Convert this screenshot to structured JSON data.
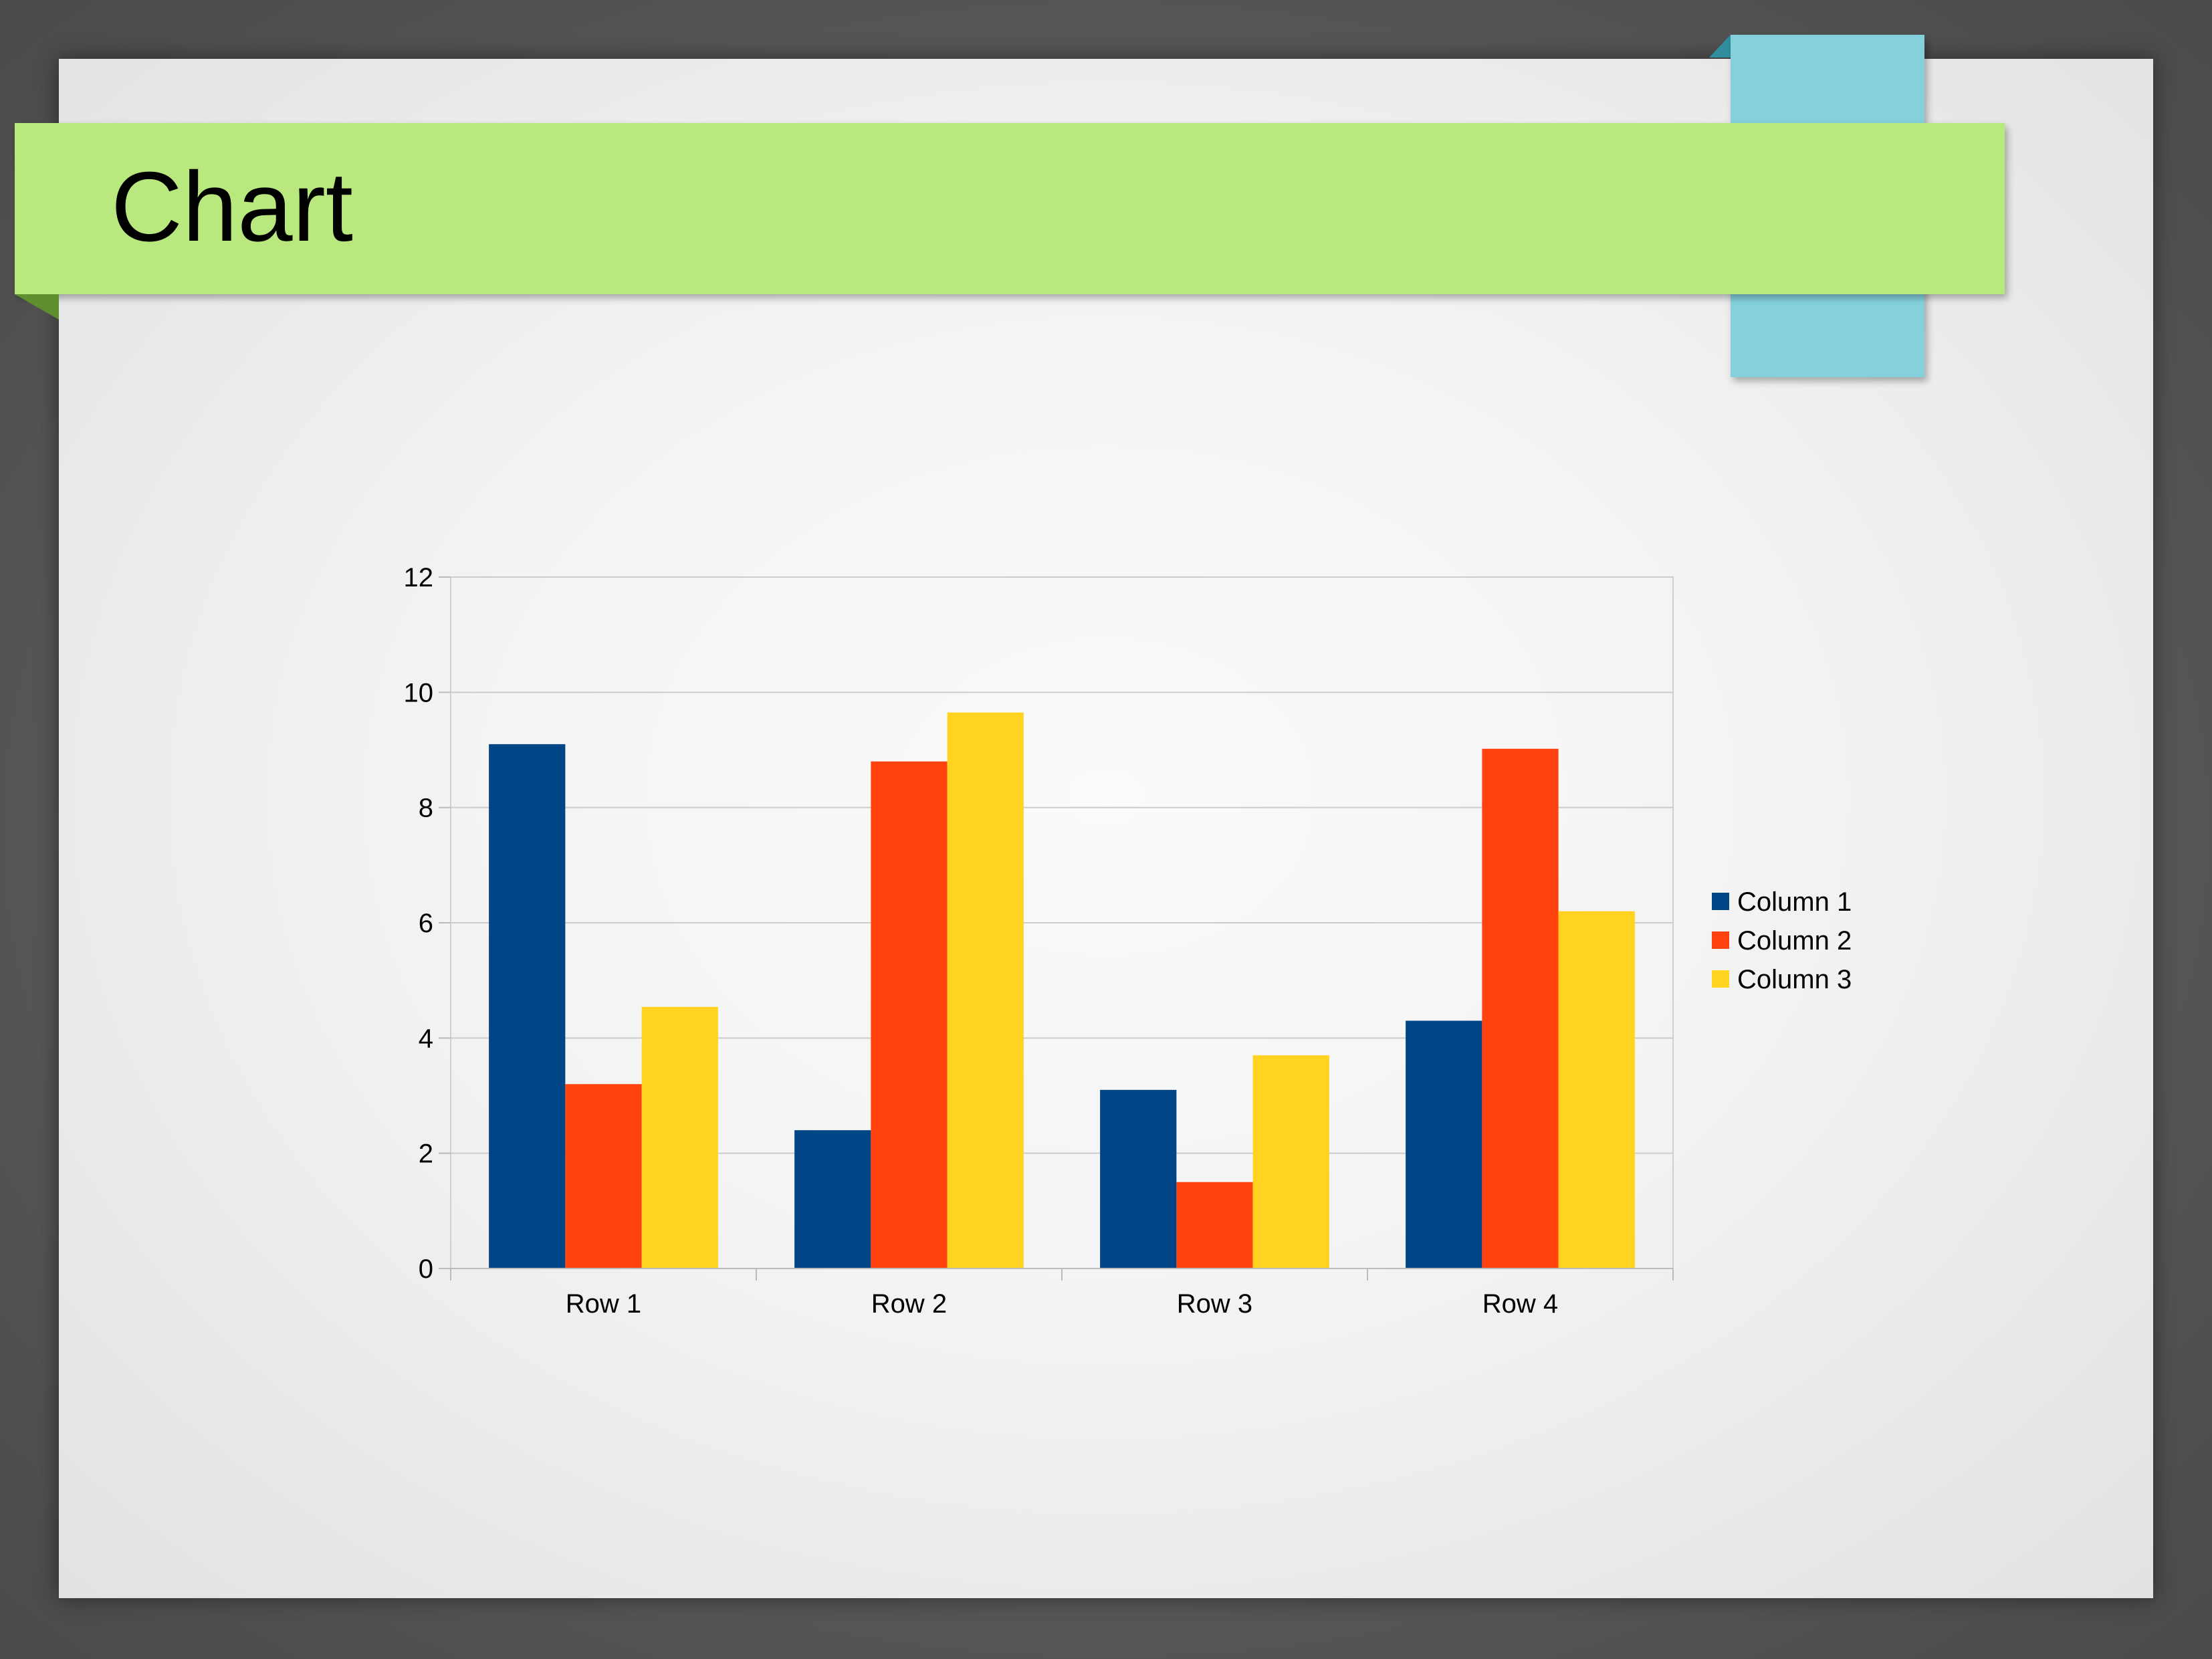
{
  "slide": {
    "title": "Chart"
  },
  "chart_data": {
    "type": "bar",
    "title": "",
    "xlabel": "",
    "ylabel": "",
    "categories": [
      "Row 1",
      "Row 2",
      "Row 3",
      "Row 4"
    ],
    "series": [
      {
        "name": "Column 1",
        "values": [
          9.1,
          2.4,
          3.1,
          4.3
        ],
        "color": "#004586"
      },
      {
        "name": "Column 2",
        "values": [
          3.2,
          8.8,
          1.5,
          9.02
        ],
        "color": "#ff420e"
      },
      {
        "name": "Column 3",
        "values": [
          4.54,
          9.65,
          3.7,
          6.2
        ],
        "color": "#ffd320"
      }
    ],
    "yticks": [
      "0",
      "2",
      "4",
      "6",
      "8",
      "10",
      "12"
    ],
    "ylim": [
      0,
      12
    ],
    "grid": true,
    "legend": "right"
  }
}
